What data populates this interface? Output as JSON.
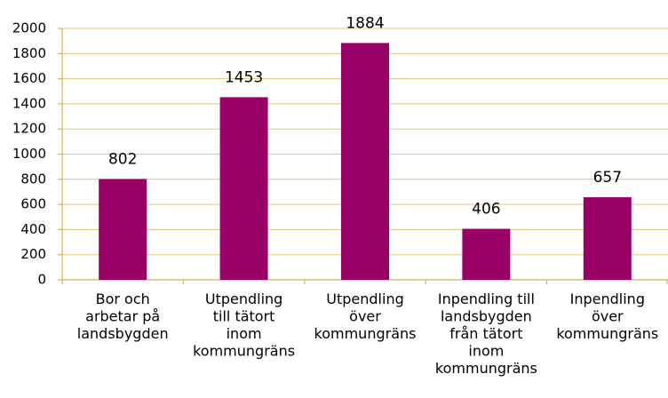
{
  "chart_data": {
    "type": "bar",
    "categories": [
      "Bor och\narbetar på\nlandsbygden",
      "Utpendling\ntill tätort\ninom\nkommungräns",
      "Utpendling\növer\nkommungräns",
      "Inpendling till\nlandsbygden\nfrån tätort\ninom\nkommungräns",
      "Inpendling\növer\nkommungräns"
    ],
    "values": [
      802,
      1453,
      1884,
      406,
      657
    ],
    "color": "#990066",
    "ylim": [
      0,
      2000
    ],
    "yticks": [
      0,
      200,
      400,
      600,
      800,
      1000,
      1200,
      1400,
      1600,
      1800,
      2000
    ],
    "grid": true
  }
}
